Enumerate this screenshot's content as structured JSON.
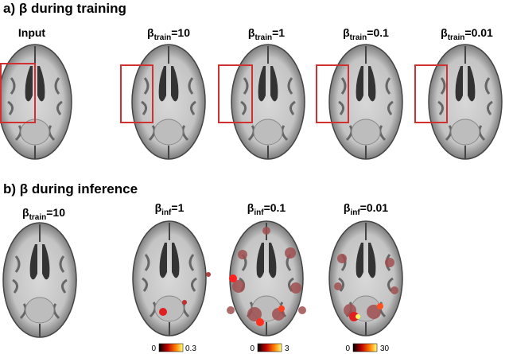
{
  "panel_a": {
    "title": "a) β during training",
    "input_label": "Input",
    "columns": [
      {
        "symbol": "β",
        "sub": "train",
        "rest": "=10"
      },
      {
        "symbol": "β",
        "sub": "train",
        "rest": "=1"
      },
      {
        "symbol": "β",
        "sub": "train",
        "rest": "=0.1"
      },
      {
        "symbol": "β",
        "sub": "train",
        "rest": "=0.01"
      }
    ]
  },
  "panel_b": {
    "title": "b) β during inference",
    "columns": [
      {
        "symbol": "β",
        "sub": "train",
        "rest": "=10"
      },
      {
        "symbol": "β",
        "sub": "inf",
        "rest": "=1"
      },
      {
        "symbol": "β",
        "sub": "inf",
        "rest": "=0.1"
      },
      {
        "symbol": "β",
        "sub": "inf",
        "rest": "=0.01"
      }
    ],
    "colorbars": [
      {
        "min": 0,
        "max": 0.3
      },
      {
        "min": 0,
        "max": 3
      },
      {
        "min": 0,
        "max": 30
      }
    ]
  }
}
